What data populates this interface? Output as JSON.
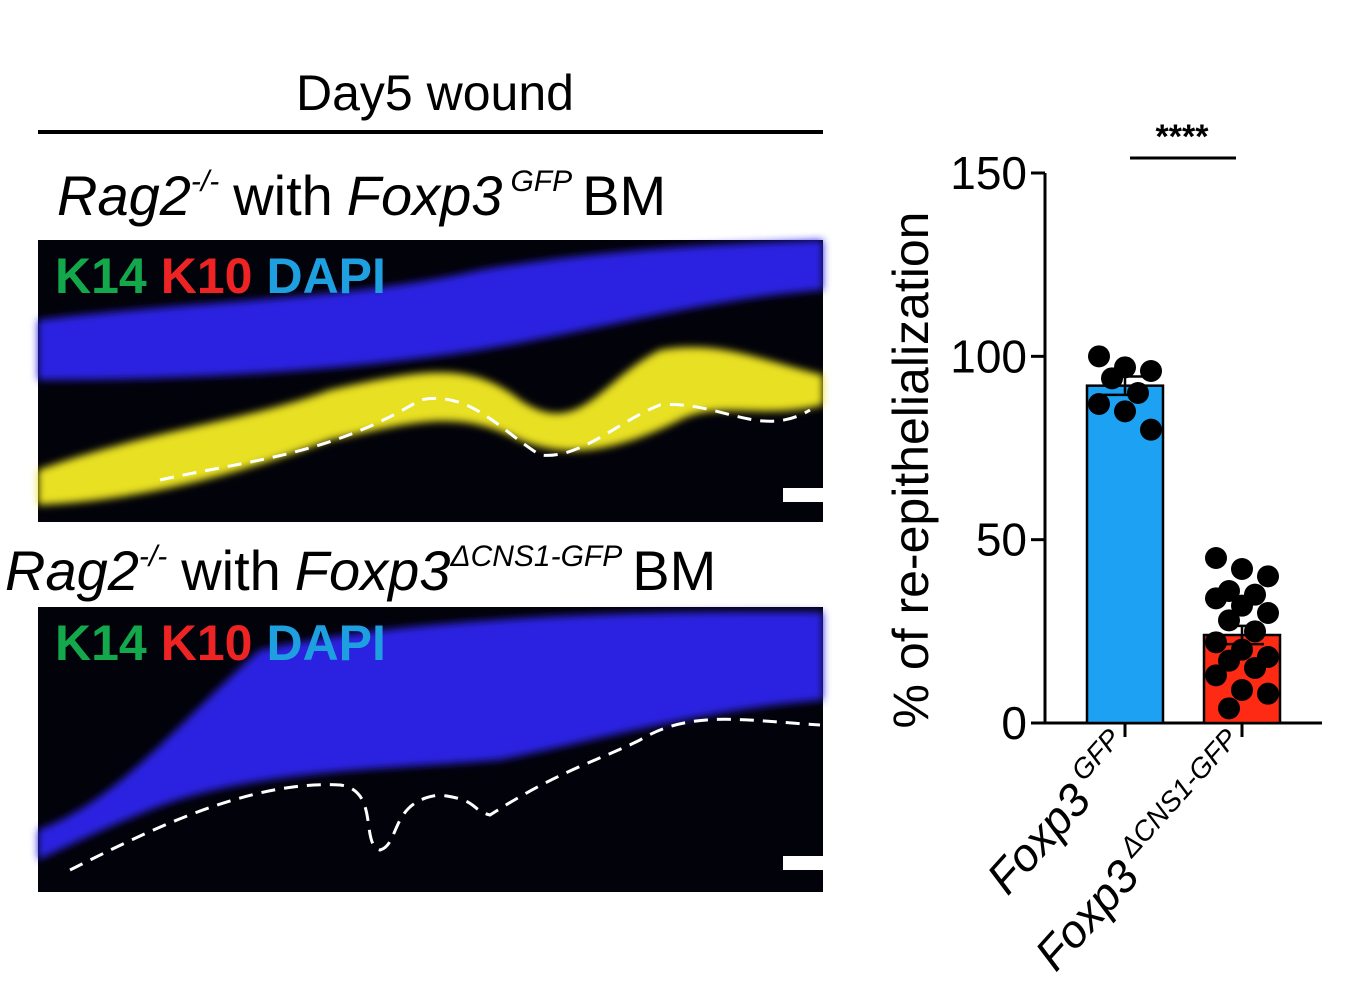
{
  "figure_title": "Day5 wound",
  "panels": [
    {
      "title": {
        "host": "Rag2",
        "host_sup": "-/-",
        "with": "with",
        "donor": "Foxp3",
        "donor_sup": "GFP",
        "suffix": "BM"
      },
      "stains": [
        "K14",
        "K10",
        "DAPI"
      ]
    },
    {
      "title": {
        "host": "Rag2",
        "host_sup": "-/-",
        "with": "with",
        "donor": "Foxp3",
        "donor_sup": "ΔCNS1-GFP",
        "suffix": "BM"
      },
      "stains": [
        "K14",
        "K10",
        "DAPI"
      ]
    }
  ],
  "stain_colors": [
    "#14a84c",
    "#ee2424",
    "#1e9fe0"
  ],
  "chart_data": {
    "type": "bar",
    "ylabel": "% of re-epithelialization",
    "categories": [
      {
        "text": "Foxp3",
        "sup": "GFP"
      },
      {
        "text": "Foxp3",
        "sup": "ΔCNS1-GFP"
      }
    ],
    "values": [
      92,
      24
    ],
    "errors": [
      2.5,
      2.5
    ],
    "colors": [
      "#1da1f2",
      "#ff2a14"
    ],
    "points": [
      [
        100,
        97,
        96,
        94,
        90,
        87,
        85,
        80
      ],
      [
        45,
        42,
        40,
        36,
        35,
        34,
        32,
        30,
        28,
        25,
        22,
        20,
        18,
        17,
        15,
        13,
        9,
        8,
        4
      ]
    ],
    "ylim": [
      0,
      150
    ],
    "yticks": [
      0,
      50,
      100,
      150
    ],
    "significance": "****"
  }
}
